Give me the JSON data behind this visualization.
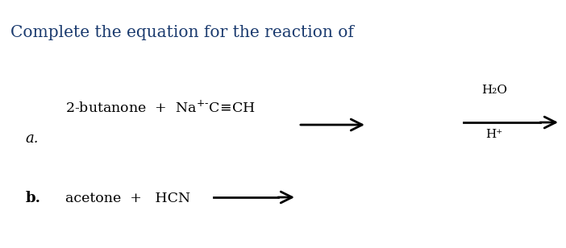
{
  "title": "Complete the equation for the reaction of",
  "title_color": "#1a3a6e",
  "title_fontsize": 14.5,
  "bg_color": "#ffffff",
  "reaction_a_label": "a.",
  "reaction_b_label": "b.",
  "reaction_a_above": "H₂O",
  "reaction_a_below": "H⁺",
  "arrow_color": "#000000",
  "text_color": "#000000",
  "label_fontsize": 13,
  "chem_fontsize": 12.5
}
